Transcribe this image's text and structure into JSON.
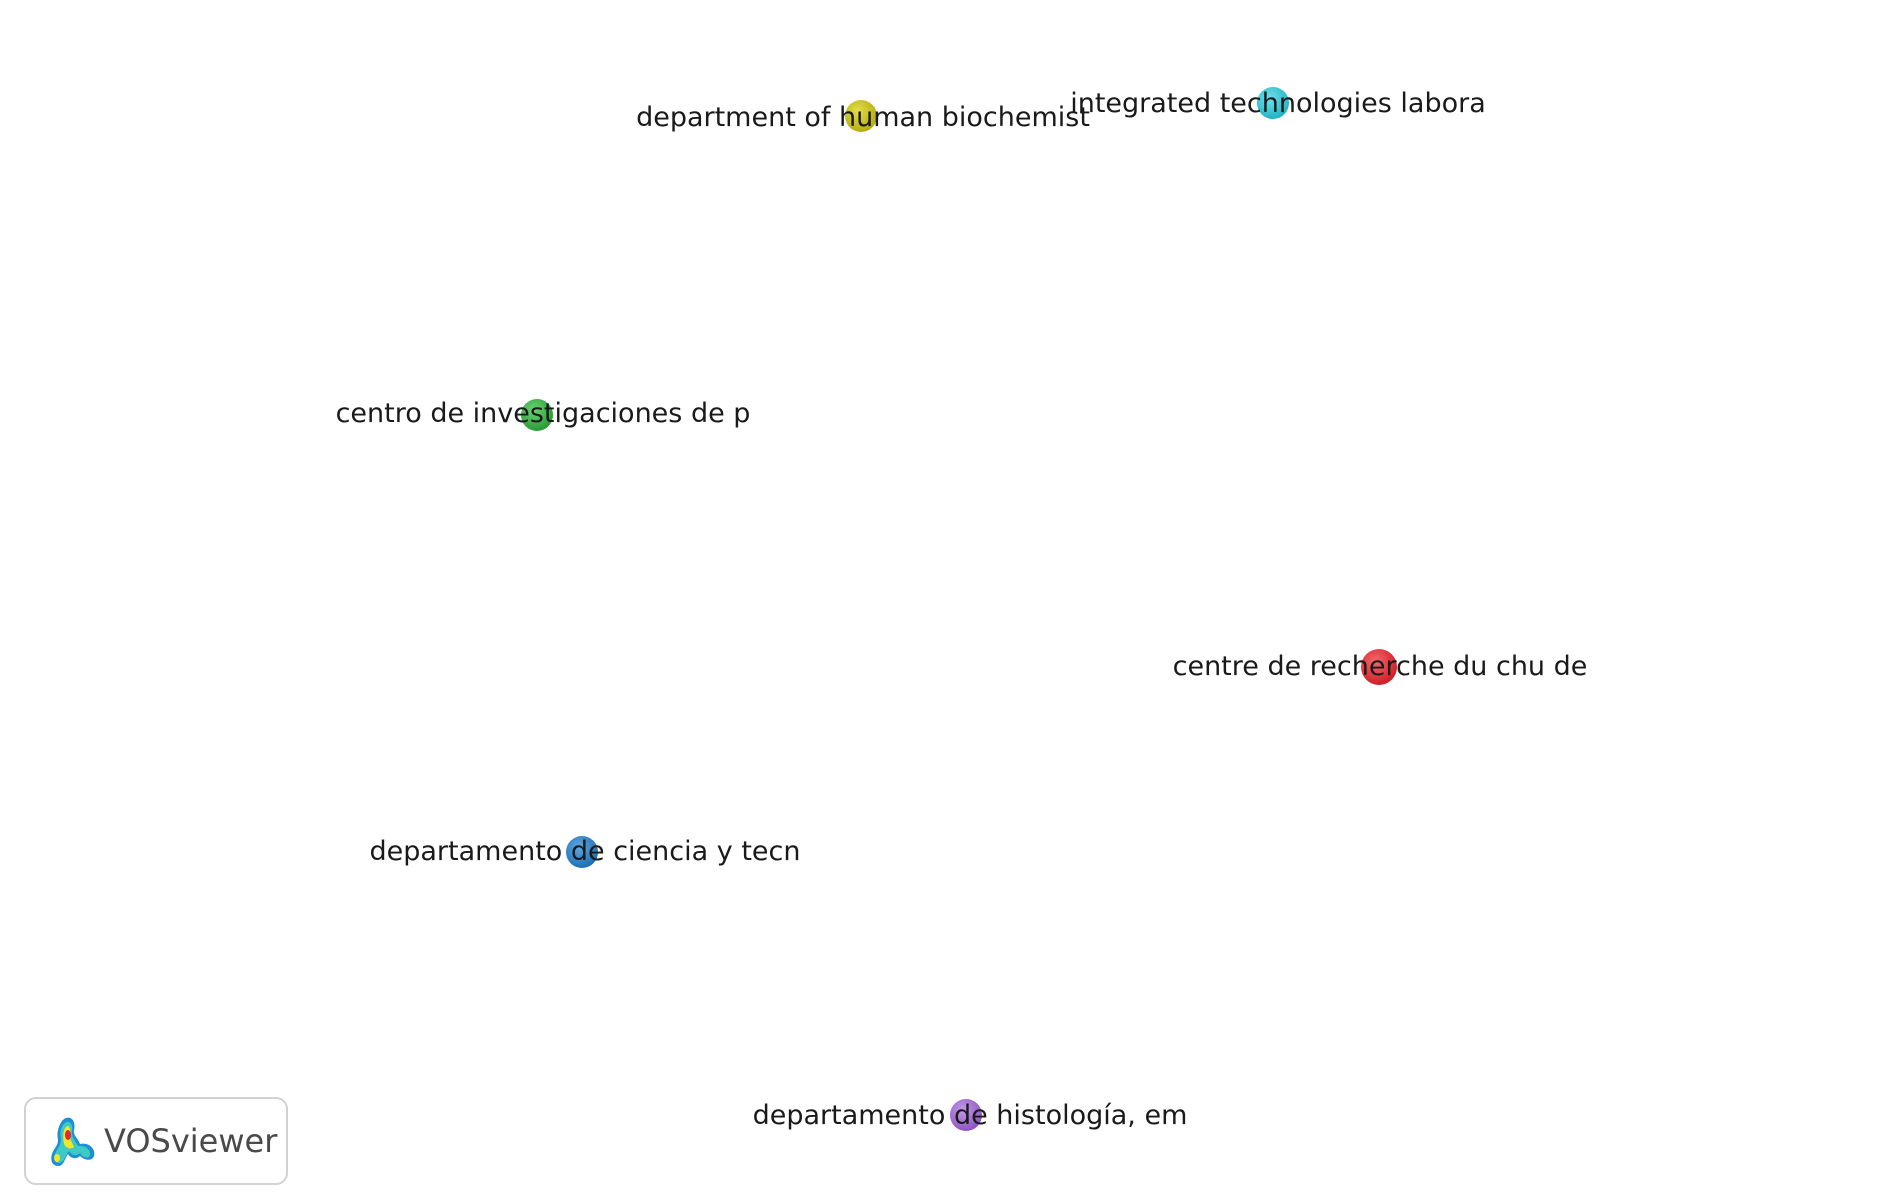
{
  "nodes": [
    {
      "id": "yellow",
      "label": "department of human biochemist",
      "color": "#c9c11f"
    },
    {
      "id": "cyan",
      "label": "integrated technologies labora",
      "color": "#35c8d8"
    },
    {
      "id": "green",
      "label": "centro de investigaciones de p",
      "color": "#3fb34a"
    },
    {
      "id": "red",
      "label": "centre de recherche du chu de",
      "color": "#e3343b"
    },
    {
      "id": "blue",
      "label": "departamento de ciencia y tecn",
      "color": "#2f87cc"
    },
    {
      "id": "purple",
      "label": "departamento de histología, em",
      "color": "#a76fd6"
    }
  ],
  "logo": {
    "text": "VOSviewer",
    "icon": "vosviewer-logo-icon"
  }
}
